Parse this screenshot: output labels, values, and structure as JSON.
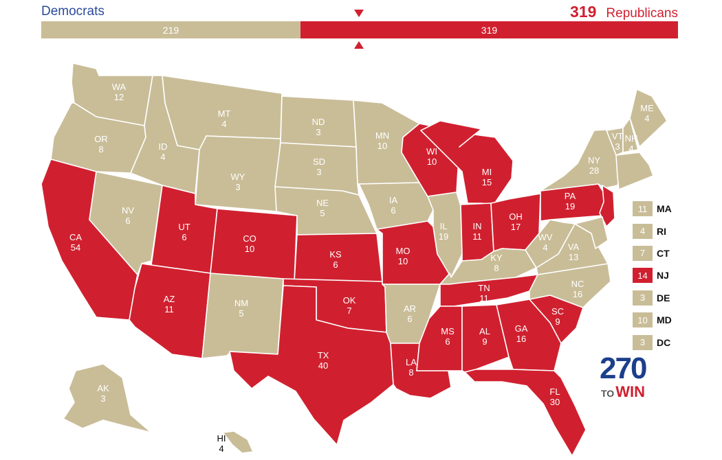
{
  "header": {
    "dem_label": "Democrats",
    "rep_total": "319",
    "rep_label": "Republicans"
  },
  "bar": {
    "dem_value": "219",
    "rep_value": "319",
    "dem_share": 0.4071,
    "rep_share": 0.5929
  },
  "colors": {
    "dem": "#c9bd98",
    "rep": "#d0202f",
    "accent_blue": "#2a4a9a"
  },
  "states": [
    {
      "ab": "WA",
      "ev": "12",
      "party": "dem"
    },
    {
      "ab": "OR",
      "ev": "8",
      "party": "dem"
    },
    {
      "ab": "CA",
      "ev": "54",
      "party": "rep"
    },
    {
      "ab": "NV",
      "ev": "6",
      "party": "dem"
    },
    {
      "ab": "ID",
      "ev": "4",
      "party": "dem"
    },
    {
      "ab": "MT",
      "ev": "4",
      "party": "dem"
    },
    {
      "ab": "WY",
      "ev": "3",
      "party": "dem"
    },
    {
      "ab": "UT",
      "ev": "6",
      "party": "rep"
    },
    {
      "ab": "AZ",
      "ev": "11",
      "party": "rep"
    },
    {
      "ab": "CO",
      "ev": "10",
      "party": "rep"
    },
    {
      "ab": "NM",
      "ev": "5",
      "party": "dem"
    },
    {
      "ab": "ND",
      "ev": "3",
      "party": "dem"
    },
    {
      "ab": "SD",
      "ev": "3",
      "party": "dem"
    },
    {
      "ab": "NE",
      "ev": "5",
      "party": "dem"
    },
    {
      "ab": "KS",
      "ev": "6",
      "party": "rep"
    },
    {
      "ab": "OK",
      "ev": "7",
      "party": "rep"
    },
    {
      "ab": "TX",
      "ev": "40",
      "party": "rep"
    },
    {
      "ab": "MN",
      "ev": "10",
      "party": "dem"
    },
    {
      "ab": "IA",
      "ev": "6",
      "party": "dem"
    },
    {
      "ab": "MO",
      "ev": "10",
      "party": "rep"
    },
    {
      "ab": "AR",
      "ev": "6",
      "party": "dem"
    },
    {
      "ab": "LA",
      "ev": "8",
      "party": "rep"
    },
    {
      "ab": "WI",
      "ev": "10",
      "party": "rep"
    },
    {
      "ab": "IL",
      "ev": "19",
      "party": "dem"
    },
    {
      "ab": "MI",
      "ev": "15",
      "party": "rep"
    },
    {
      "ab": "IN",
      "ev": "11",
      "party": "rep"
    },
    {
      "ab": "OH",
      "ev": "17",
      "party": "rep"
    },
    {
      "ab": "KY",
      "ev": "8",
      "party": "dem"
    },
    {
      "ab": "TN",
      "ev": "11",
      "party": "rep"
    },
    {
      "ab": "MS",
      "ev": "6",
      "party": "rep"
    },
    {
      "ab": "AL",
      "ev": "9",
      "party": "rep"
    },
    {
      "ab": "GA",
      "ev": "16",
      "party": "rep"
    },
    {
      "ab": "FL",
      "ev": "30",
      "party": "rep"
    },
    {
      "ab": "SC",
      "ev": "9",
      "party": "rep"
    },
    {
      "ab": "NC",
      "ev": "16",
      "party": "dem"
    },
    {
      "ab": "VA",
      "ev": "13",
      "party": "dem"
    },
    {
      "ab": "WV",
      "ev": "4",
      "party": "dem"
    },
    {
      "ab": "PA",
      "ev": "19",
      "party": "rep"
    },
    {
      "ab": "NY",
      "ev": "28",
      "party": "dem"
    },
    {
      "ab": "VT",
      "ev": "3",
      "party": "dem"
    },
    {
      "ab": "NH",
      "ev": "4",
      "party": "dem"
    },
    {
      "ab": "ME",
      "ev": "4",
      "party": "dem"
    },
    {
      "ab": "AK",
      "ev": "3",
      "party": "dem"
    },
    {
      "ab": "HI",
      "ev": "4",
      "party": "dem"
    }
  ],
  "small_states": [
    {
      "ab": "MA",
      "ev": "11",
      "party": "dem"
    },
    {
      "ab": "RI",
      "ev": "4",
      "party": "dem"
    },
    {
      "ab": "CT",
      "ev": "7",
      "party": "dem"
    },
    {
      "ab": "NJ",
      "ev": "14",
      "party": "rep"
    },
    {
      "ab": "DE",
      "ev": "3",
      "party": "dem"
    },
    {
      "ab": "MD",
      "ev": "10",
      "party": "dem"
    },
    {
      "ab": "DC",
      "ev": "3",
      "party": "dem"
    }
  ],
  "logo": {
    "number": "270",
    "word_to": "TO",
    "word_win": "WIN"
  }
}
